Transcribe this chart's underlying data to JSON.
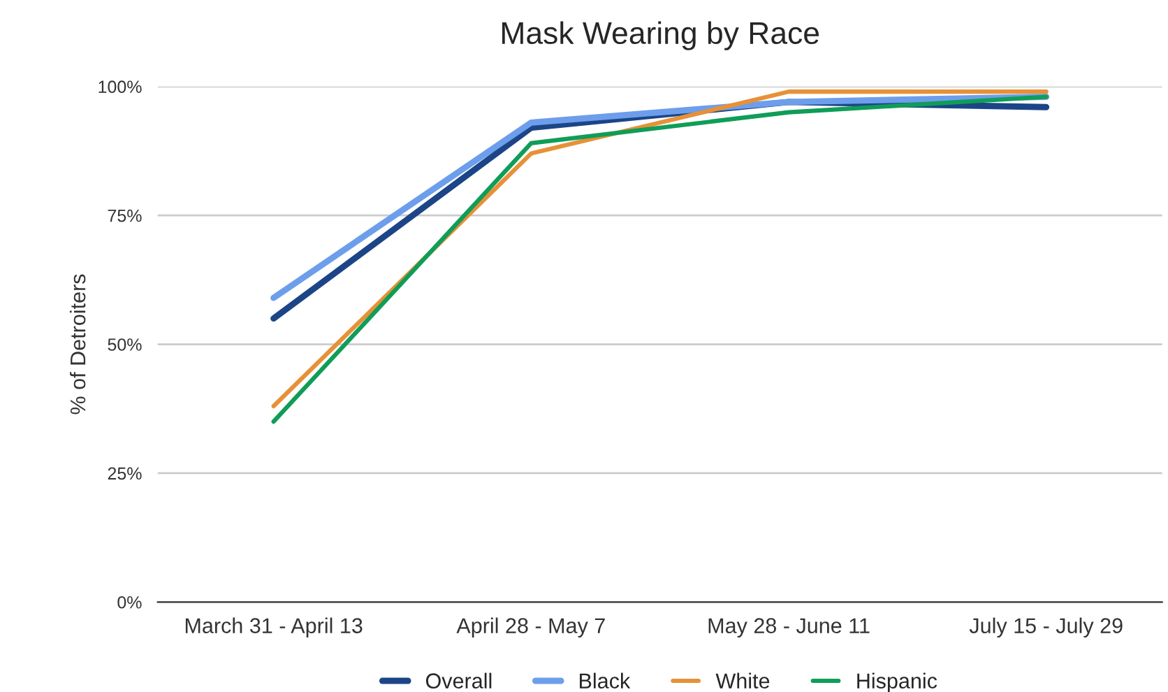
{
  "chart_data": {
    "type": "line",
    "title": "Mask Wearing by Race",
    "ylabel": "% of Detroiters",
    "categories": [
      "March 31 - April 13",
      "April 28 - May 7",
      "May 28 - June 11",
      "July 15 - July 29"
    ],
    "series": [
      {
        "name": "Overall",
        "color": "#1c4587",
        "values": [
          55,
          92,
          97,
          96
        ]
      },
      {
        "name": "Black",
        "color": "#6d9eeb",
        "values": [
          59,
          93,
          97,
          98
        ]
      },
      {
        "name": "White",
        "color": "#e69138",
        "values": [
          38,
          87,
          99,
          99
        ]
      },
      {
        "name": "Hispanic",
        "color": "#0f9d58",
        "values": [
          35,
          89,
          95,
          98
        ]
      }
    ],
    "ylim": [
      0,
      100
    ],
    "yticks": [
      {
        "value": 0,
        "label": "0%"
      },
      {
        "value": 25,
        "label": "25%"
      },
      {
        "value": 50,
        "label": "50%"
      },
      {
        "value": 75,
        "label": "75%"
      },
      {
        "value": 100,
        "label": "100%"
      }
    ],
    "grid": "y",
    "legend": "bottom",
    "marker": "none",
    "line_style": "solid"
  }
}
